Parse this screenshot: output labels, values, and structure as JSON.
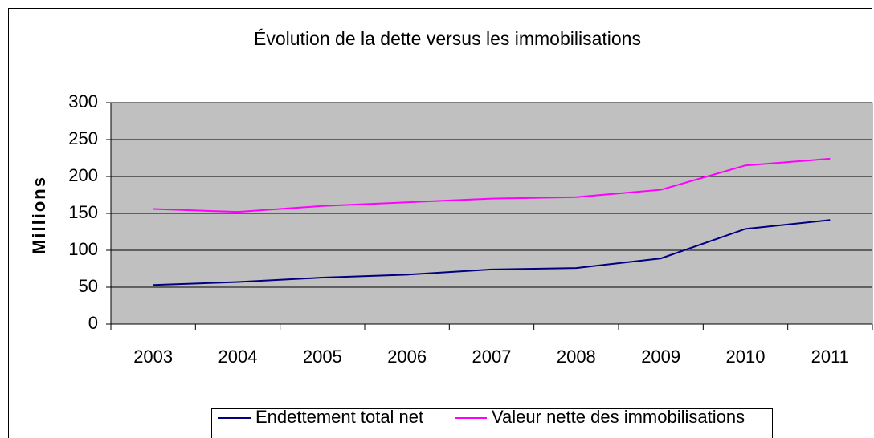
{
  "chart_data": {
    "type": "line",
    "title": "Évolution de la dette versus les immobilisations",
    "y_label": "Millions",
    "categories": [
      "2003",
      "2004",
      "2005",
      "2006",
      "2007",
      "2008",
      "2009",
      "2010",
      "2011"
    ],
    "series": [
      {
        "name": "Endettement total net",
        "color": "#000080",
        "values": [
          53,
          57,
          63,
          67,
          74,
          76,
          89,
          129,
          141
        ]
      },
      {
        "name": "Valeur nette des immobilisations",
        "color": "#ff00ff",
        "values": [
          156,
          152,
          160,
          165,
          170,
          172,
          182,
          215,
          224
        ]
      }
    ],
    "ylim": [
      0,
      300
    ],
    "yticks": [
      0,
      50,
      100,
      150,
      200,
      250,
      300
    ],
    "grid": true,
    "legend": "bottom"
  }
}
